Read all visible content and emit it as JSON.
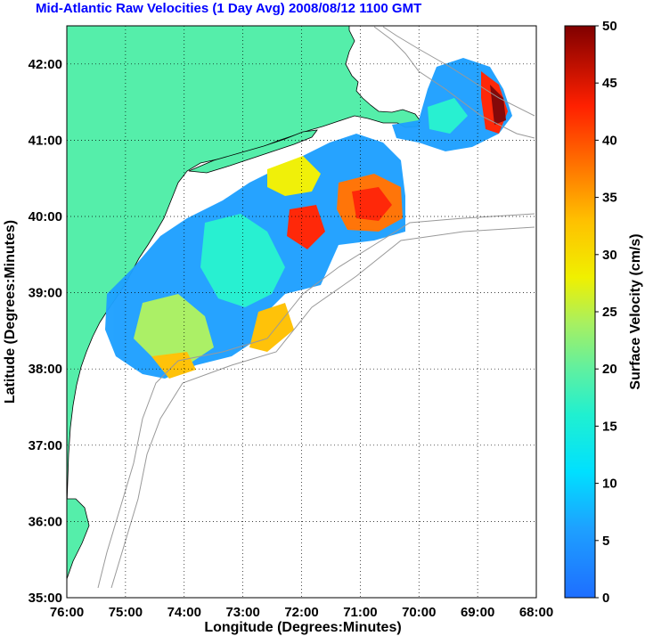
{
  "title": "Mid-Atlantic Raw Velocities (1 Day Avg) 2008/08/12 1100 GMT",
  "map": {
    "xlabel": "Longitude (Degrees:Minutes)",
    "ylabel": "Latitude (Degrees:Minutes)",
    "lon_ticks": [
      "76:00",
      "75:00",
      "74:00",
      "73:00",
      "72:00",
      "71:00",
      "70:00",
      "69:00",
      "68:00"
    ],
    "lat_ticks": [
      "42:00",
      "41:00",
      "40:00",
      "39:00",
      "38:00",
      "37:00",
      "36:00",
      "35:00"
    ],
    "lon_range": [
      -76,
      -68
    ],
    "lat_range": [
      35,
      42.5
    ],
    "land_color": "#55eeaa",
    "grid": "dotted"
  },
  "colorbar": {
    "label": "Surface Velocity (cm/s)",
    "ticks": [
      "50",
      "45",
      "40",
      "35",
      "30",
      "25",
      "20",
      "15",
      "10",
      "5",
      "0"
    ],
    "range": [
      0,
      50
    ],
    "colormap": "jet"
  }
}
